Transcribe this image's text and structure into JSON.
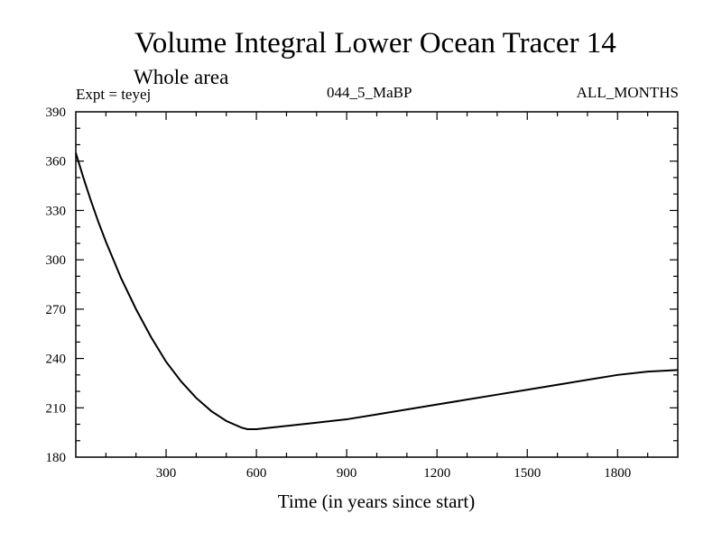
{
  "chart_data": {
    "type": "line",
    "title": "Volume Integral Lower Ocean Tracer 14",
    "subtitle": "Whole area",
    "experiment_label": "Expt = teyej",
    "run_label": "044_5_MaBP",
    "months_label": "ALL_MONTHS",
    "xlabel": "Time (in years since start)",
    "ylabel": "",
    "xlim": [
      0,
      2000
    ],
    "ylim": [
      180,
      390
    ],
    "xticks": [
      300,
      600,
      900,
      1200,
      1500,
      1800
    ],
    "yticks": [
      180,
      210,
      240,
      270,
      300,
      330,
      360,
      390
    ],
    "x_minor_step": 100,
    "y_minor_step": 10,
    "series": [
      {
        "name": "Lower Ocean Tracer 14",
        "x": [
          0,
          25,
          50,
          75,
          100,
          150,
          200,
          250,
          300,
          350,
          400,
          450,
          500,
          550,
          570,
          600,
          700,
          800,
          900,
          1000,
          1100,
          1200,
          1300,
          1400,
          1500,
          1600,
          1700,
          1800,
          1900,
          2000
        ],
        "y": [
          365,
          350,
          336,
          323,
          311,
          289,
          270,
          253,
          238,
          226,
          216,
          208,
          202,
          198,
          197,
          197,
          199,
          201,
          203,
          206,
          209,
          212,
          215,
          218,
          221,
          224,
          227,
          230,
          232,
          233
        ]
      }
    ]
  }
}
